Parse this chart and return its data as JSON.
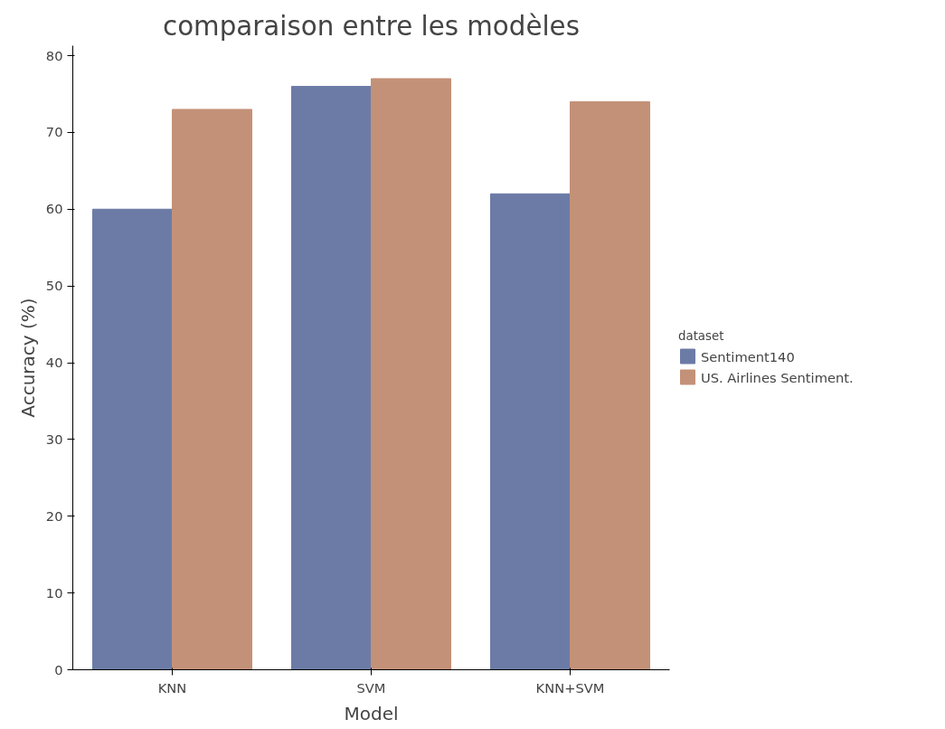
{
  "chart_data": {
    "type": "bar",
    "title": "comparaison entre les modèles",
    "xlabel": "Model",
    "ylabel": "Accuracy (%)",
    "legend_title": "dataset",
    "legend": "right",
    "categories": [
      "KNN",
      "SVM",
      "KNN+SVM"
    ],
    "series": [
      {
        "name": "Sentiment140",
        "color": "#6c7ba6",
        "values": [
          60,
          76,
          62
        ]
      },
      {
        "name": "US. Airlines Sentiment.",
        "color": "#c39178",
        "values": [
          73,
          77,
          74
        ]
      }
    ],
    "ylim": [
      0,
      81.3
    ],
    "yticks": [
      0,
      10,
      20,
      30,
      40,
      50,
      60,
      70,
      80
    ]
  }
}
